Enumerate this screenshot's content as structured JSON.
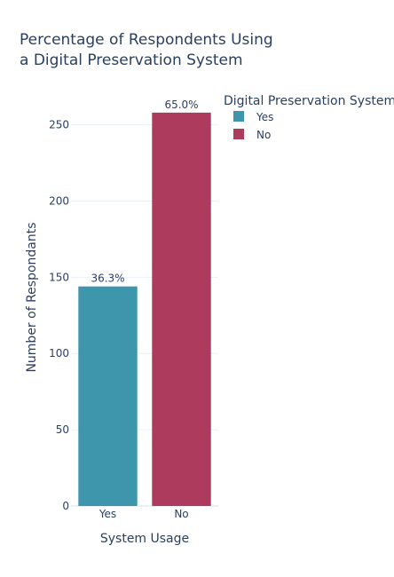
{
  "chart_data": {
    "type": "bar",
    "title_lines": [
      "Percentage of Respondents Using",
      "a Digital Preservation System"
    ],
    "xlabel": "System Usage",
    "ylabel": "Number of Respondants",
    "categories": [
      "Yes",
      "No"
    ],
    "values": [
      144,
      258
    ],
    "data_labels": [
      "36.3%",
      "65.0%"
    ],
    "ylim": [
      0,
      262
    ],
    "yticks": [
      0,
      50,
      100,
      150,
      200,
      250
    ],
    "grid": true,
    "legend": {
      "title": "Digital Preservation System",
      "placement": "top-right",
      "items": [
        {
          "label": "Yes",
          "color": "#3e96ad"
        },
        {
          "label": "No",
          "color": "#ad3b5e"
        }
      ]
    }
  }
}
